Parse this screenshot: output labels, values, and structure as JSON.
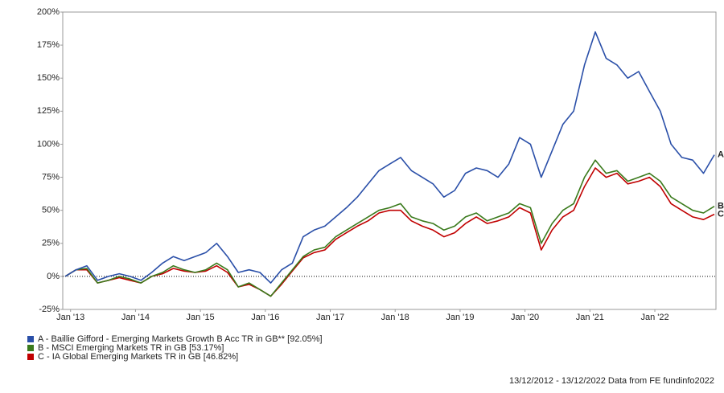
{
  "chart_data": {
    "type": "line",
    "x": [
      "2012-12",
      "2013-02",
      "2013-04",
      "2013-06",
      "2013-08",
      "2013-10",
      "2013-12",
      "2014-02",
      "2014-04",
      "2014-06",
      "2014-08",
      "2014-10",
      "2014-12",
      "2015-02",
      "2015-04",
      "2015-06",
      "2015-08",
      "2015-10",
      "2015-12",
      "2016-02",
      "2016-04",
      "2016-06",
      "2016-08",
      "2016-10",
      "2016-12",
      "2017-02",
      "2017-04",
      "2017-06",
      "2017-08",
      "2017-10",
      "2017-12",
      "2018-02",
      "2018-04",
      "2018-06",
      "2018-08",
      "2018-10",
      "2018-12",
      "2019-02",
      "2019-04",
      "2019-06",
      "2019-08",
      "2019-10",
      "2019-12",
      "2020-02",
      "2020-04",
      "2020-06",
      "2020-08",
      "2020-10",
      "2020-12",
      "2021-02",
      "2021-04",
      "2021-06",
      "2021-08",
      "2021-10",
      "2021-12",
      "2022-02",
      "2022-04",
      "2022-06",
      "2022-08",
      "2022-10",
      "2022-12"
    ],
    "series": [
      {
        "name": "A - Baillie Gifford - Emerging Markets Growth B Acc TR in GB** [92.05%]",
        "end_label": "A",
        "color": "#2a4fa8",
        "values": [
          0,
          5,
          8,
          -3,
          0,
          2,
          0,
          -3,
          3,
          10,
          15,
          12,
          15,
          18,
          25,
          15,
          3,
          5,
          3,
          -5,
          5,
          10,
          30,
          35,
          38,
          45,
          52,
          60,
          70,
          80,
          85,
          90,
          80,
          75,
          70,
          60,
          65,
          78,
          82,
          80,
          75,
          85,
          105,
          100,
          75,
          95,
          115,
          125,
          160,
          185,
          165,
          160,
          150,
          155,
          140,
          125,
          100,
          90,
          88,
          78,
          92
        ]
      },
      {
        "name": "B - MSCI Emerging Markets TR in GB [53.17%]",
        "end_label": "B",
        "color": "#3a7a1c",
        "values": [
          0,
          5,
          6,
          -5,
          -3,
          0,
          -2,
          -5,
          0,
          3,
          8,
          5,
          3,
          5,
          10,
          5,
          -8,
          -5,
          -10,
          -15,
          -5,
          5,
          15,
          20,
          22,
          30,
          35,
          40,
          45,
          50,
          52,
          55,
          45,
          42,
          40,
          35,
          38,
          45,
          48,
          42,
          45,
          48,
          55,
          52,
          25,
          40,
          50,
          55,
          75,
          88,
          78,
          80,
          72,
          75,
          78,
          72,
          60,
          55,
          50,
          48,
          53
        ]
      },
      {
        "name": "C - IA Global Emerging Markets TR in GB [46.82%]",
        "end_label": "C",
        "color": "#c00000",
        "values": [
          0,
          5,
          5,
          -5,
          -3,
          -1,
          -3,
          -5,
          0,
          2,
          6,
          4,
          3,
          4,
          8,
          3,
          -8,
          -6,
          -10,
          -15,
          -6,
          4,
          14,
          18,
          20,
          28,
          33,
          38,
          42,
          48,
          50,
          50,
          42,
          38,
          35,
          30,
          33,
          40,
          45,
          40,
          42,
          45,
          52,
          48,
          20,
          35,
          45,
          50,
          68,
          82,
          75,
          78,
          70,
          72,
          75,
          68,
          55,
          50,
          45,
          43,
          47
        ]
      }
    ],
    "xlim": [
      "2012-12",
      "2022-12"
    ],
    "xticks": [
      {
        "value": "2013-01",
        "label": "Jan '13"
      },
      {
        "value": "2014-01",
        "label": "Jan '14"
      },
      {
        "value": "2015-01",
        "label": "Jan '15"
      },
      {
        "value": "2016-01",
        "label": "Jan '16"
      },
      {
        "value": "2017-01",
        "label": "Jan '17"
      },
      {
        "value": "2018-01",
        "label": "Jan '18"
      },
      {
        "value": "2019-01",
        "label": "Jan '19"
      },
      {
        "value": "2020-01",
        "label": "Jan '20"
      },
      {
        "value": "2021-01",
        "label": "Jan '21"
      },
      {
        "value": "2022-01",
        "label": "Jan '22"
      }
    ],
    "ylim": [
      -25,
      200
    ],
    "yticks": [
      {
        "value": -25,
        "label": "-25%"
      },
      {
        "value": 0,
        "label": "0%"
      },
      {
        "value": 25,
        "label": "25%"
      },
      {
        "value": 50,
        "label": "50%"
      },
      {
        "value": 75,
        "label": "75%"
      },
      {
        "value": 100,
        "label": "100%"
      },
      {
        "value": 125,
        "label": "125%"
      },
      {
        "value": 150,
        "label": "150%"
      },
      {
        "value": 175,
        "label": "175%"
      },
      {
        "value": 200,
        "label": "200%"
      }
    ],
    "zero_line": true,
    "footer": "13/12/2012 - 13/12/2022 Data from FE fundinfo2022"
  }
}
